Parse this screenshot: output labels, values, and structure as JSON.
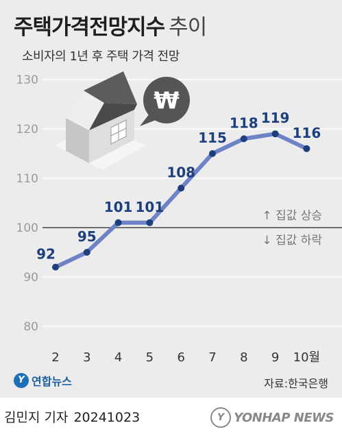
{
  "title": "주택가격전망지수",
  "title_suffix": "추이",
  "subtitle": "소비자의 1년 후 주택 가격 전망",
  "source": "자료:한국은행",
  "brand": "연합뉴스",
  "brand_mark": "Y",
  "credit_name": "김민지 기자",
  "credit_date": "20241023",
  "agency": "YONHAP NEWS",
  "agency_mark": "Y",
  "bubble_symbol": "₩",
  "colors": {
    "line": "#6e82c6",
    "point": "#1e3f7e",
    "label": "#1e3f7e",
    "grid": "#ffffff",
    "baseline": "#444444",
    "house_wall": "#d4d4d4",
    "house_roof": "#606060",
    "bubble": "#555555"
  },
  "chart_data": {
    "type": "line",
    "categories": [
      "2",
      "3",
      "4",
      "5",
      "6",
      "7",
      "8",
      "9",
      "10월"
    ],
    "values": [
      92,
      95,
      101,
      101,
      108,
      115,
      118,
      119,
      116
    ],
    "ylim": [
      80,
      130
    ],
    "yticks": [
      80,
      90,
      100,
      110,
      120,
      130
    ],
    "ytick_labels": [
      "80",
      "90",
      "100",
      "110",
      "120",
      "130"
    ],
    "baseline": 100,
    "annotations": {
      "above": "↑ 집값 상승",
      "below": "↓ 집값 하락"
    },
    "grid": true
  }
}
